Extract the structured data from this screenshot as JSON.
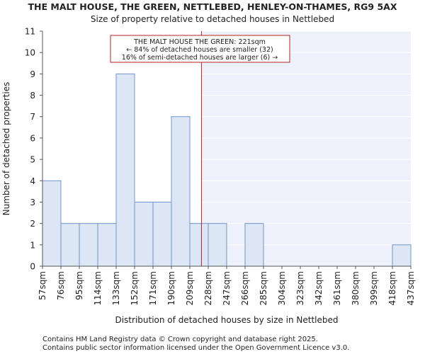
{
  "chart_data": {
    "type": "bar",
    "title": "THE MALT HOUSE, THE GREEN, NETTLEBED, HENLEY-ON-THAMES, RG9 5AX",
    "subtitle": "Size of property relative to detached houses in Nettlebed",
    "xlabel": "Distribution of detached houses by size in Nettlebed",
    "ylabel": "Number of detached properties",
    "ylim": [
      0,
      11
    ],
    "yticks": [
      0,
      1,
      2,
      3,
      4,
      5,
      6,
      7,
      8,
      9,
      10,
      11
    ],
    "bin_edges_labels": [
      "57sqm",
      "76sqm",
      "95sqm",
      "114sqm",
      "133sqm",
      "152sqm",
      "171sqm",
      "190sqm",
      "209sqm",
      "228sqm",
      "247sqm",
      "266sqm",
      "285sqm",
      "304sqm",
      "323sqm",
      "342sqm",
      "361sqm",
      "380sqm",
      "399sqm",
      "418sqm",
      "437sqm"
    ],
    "values": [
      4,
      2,
      2,
      2,
      9,
      3,
      3,
      7,
      2,
      2,
      0,
      2,
      0,
      0,
      0,
      0,
      0,
      0,
      0,
      1
    ],
    "property_size": 221,
    "property_size_unit": "sqm",
    "annotation": {
      "line1": "THE MALT HOUSE THE GREEN: 221sqm",
      "line2": "← 84% of detached houses are smaller (32)",
      "line3": "16% of semi-detached houses are larger (6) →"
    },
    "colors": {
      "bar_fill": "#dce6f5",
      "bar_stroke": "#6f95cc",
      "highlight_region": "#eef1fb",
      "marker_line": "#b22222",
      "annotation_border": "#b22222"
    }
  },
  "footer": {
    "line1": "Contains HM Land Registry data © Crown copyright and database right 2025.",
    "line2": "Contains public sector information licensed under the Open Government Licence v3.0."
  }
}
